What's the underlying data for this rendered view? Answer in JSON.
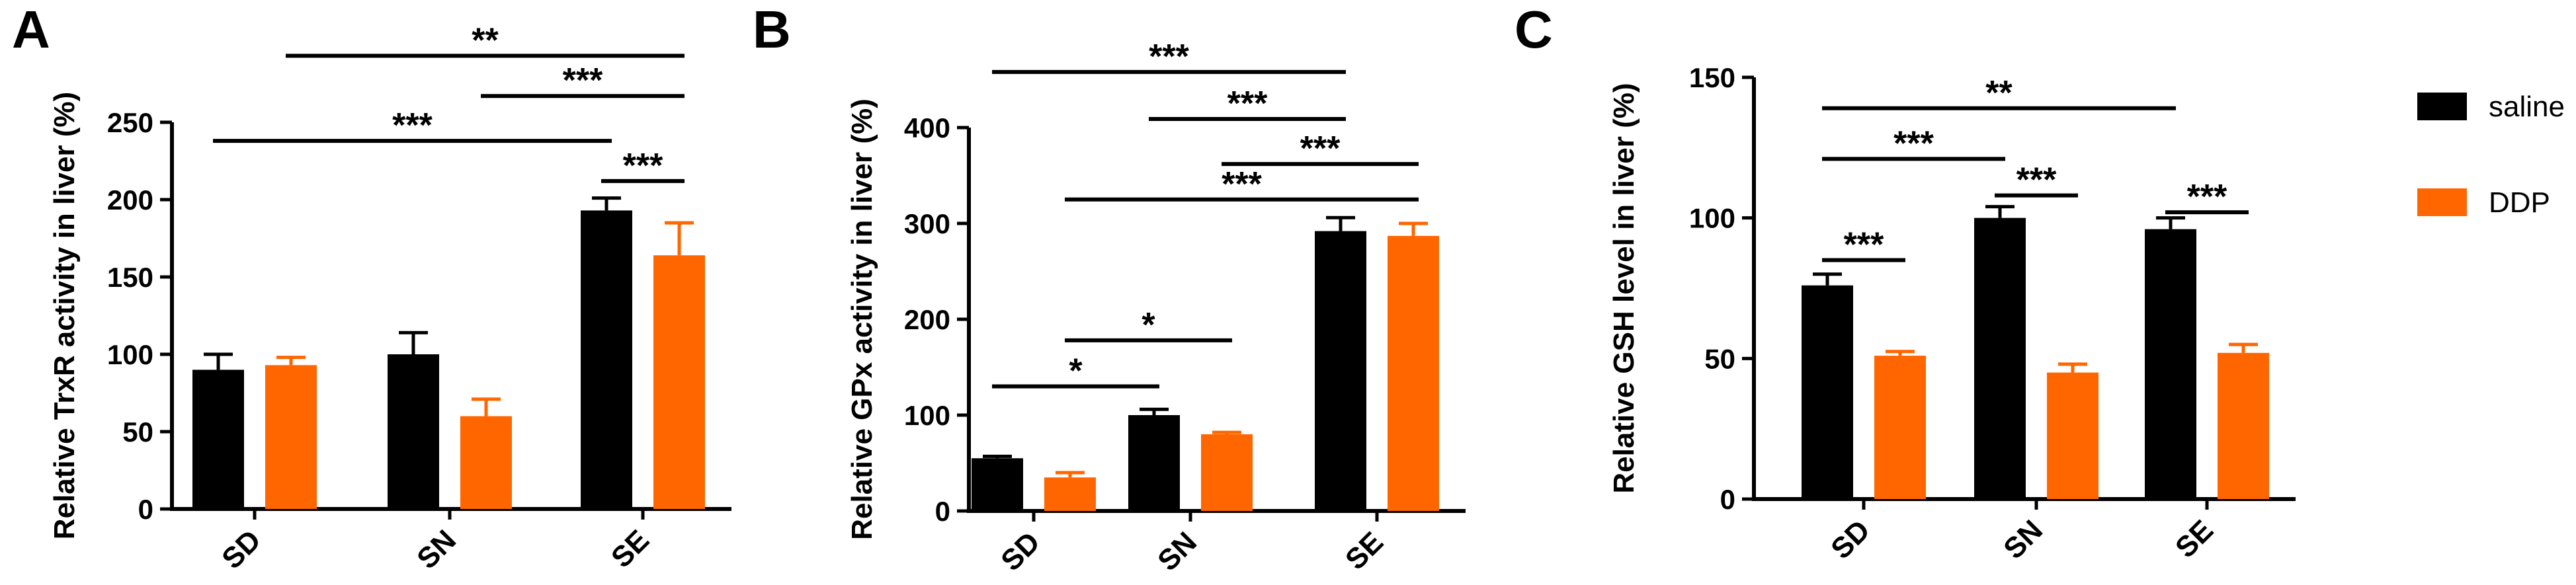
{
  "colors": {
    "saline": "#000000",
    "DDP": "#ff6600"
  },
  "legend": [
    {
      "label": "saline",
      "color": "#000000"
    },
    {
      "label": "DDP",
      "color": "#ff6600"
    }
  ],
  "chart_data": [
    {
      "panel": "A",
      "type": "bar",
      "ylabel": "Relative TrxR activity in liver (%)",
      "ylim": [
        0,
        250
      ],
      "yticks": [
        0,
        50,
        100,
        150,
        200,
        250
      ],
      "categories": [
        "SD",
        "SN",
        "SE"
      ],
      "series": [
        {
          "name": "saline",
          "values": [
            90,
            100,
            193
          ],
          "errors": [
            10,
            14,
            8
          ]
        },
        {
          "name": "DDP",
          "values": [
            93,
            60,
            164
          ],
          "errors": [
            5,
            11,
            21
          ]
        }
      ],
      "significance": [
        {
          "from": [
            2,
            0
          ],
          "to": [
            2,
            1
          ],
          "label": "***",
          "y": 212
        },
        {
          "from": [
            0,
            0
          ],
          "to": [
            2,
            0
          ],
          "label": "***",
          "y": 238
        },
        {
          "from": [
            1,
            1
          ],
          "to": [
            2,
            1
          ],
          "label": "***",
          "y": 267
        },
        {
          "from": [
            0,
            1
          ],
          "to": [
            2,
            1
          ],
          "label": "**",
          "y": 293
        }
      ]
    },
    {
      "panel": "B",
      "type": "bar",
      "ylabel": "Relative GPx activity in liver (%)",
      "ylim": [
        0,
        400
      ],
      "yticks": [
        0,
        100,
        200,
        300,
        400
      ],
      "categories": [
        "SD",
        "SN",
        "SE"
      ],
      "series": [
        {
          "name": "saline",
          "values": [
            55,
            100,
            292
          ],
          "errors": [
            2,
            6,
            14
          ]
        },
        {
          "name": "DDP",
          "values": [
            35,
            80,
            287
          ],
          "errors": [
            5,
            2,
            13
          ]
        }
      ],
      "significance": [
        {
          "from": [
            0,
            0
          ],
          "to": [
            1,
            0
          ],
          "label": "*",
          "y": 130
        },
        {
          "from": [
            0,
            1
          ],
          "to": [
            1,
            1
          ],
          "label": "*",
          "y": 178
        },
        {
          "from": [
            0,
            1
          ],
          "to": [
            2,
            1
          ],
          "label": "***",
          "y": 325
        },
        {
          "from": [
            1,
            1
          ],
          "to": [
            2,
            1
          ],
          "label": "***",
          "y": 362
        },
        {
          "from": [
            1,
            0
          ],
          "to": [
            2,
            0
          ],
          "label": "***",
          "y": 409
        },
        {
          "from": [
            0,
            0
          ],
          "to": [
            2,
            0
          ],
          "label": "***",
          "y": 458
        }
      ]
    },
    {
      "panel": "C",
      "type": "bar",
      "ylabel": "Relative GSH level in liver (%)",
      "ylim": [
        0,
        150
      ],
      "yticks": [
        0,
        50,
        100,
        150
      ],
      "categories": [
        "SD",
        "SN",
        "SE"
      ],
      "series": [
        {
          "name": "saline",
          "values": [
            76,
            100,
            96
          ],
          "errors": [
            4,
            4,
            4
          ]
        },
        {
          "name": "DDP",
          "values": [
            51,
            45,
            52
          ],
          "errors": [
            1.5,
            3,
            3
          ]
        }
      ],
      "significance": [
        {
          "from": [
            0,
            0
          ],
          "to": [
            0,
            1
          ],
          "label": "***",
          "y": 85
        },
        {
          "from": [
            1,
            0
          ],
          "to": [
            1,
            1
          ],
          "label": "***",
          "y": 108
        },
        {
          "from": [
            2,
            0
          ],
          "to": [
            2,
            1
          ],
          "label": "***",
          "y": 102
        },
        {
          "from": [
            0,
            0
          ],
          "to": [
            1,
            0
          ],
          "label": "***",
          "y": 121
        },
        {
          "from": [
            0,
            0
          ],
          "to": [
            2,
            0
          ],
          "label": "**",
          "y": 139
        }
      ]
    }
  ]
}
